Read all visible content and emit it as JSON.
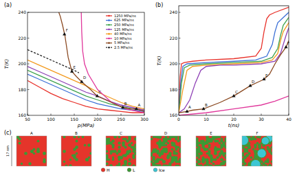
{
  "chart_data": [
    {
      "type": "line",
      "title": "(a)",
      "x_label": "p(MPa)",
      "y_label": "T(K)",
      "xlim": [
        50,
        300
      ],
      "ylim": [
        160,
        240
      ],
      "xticks": [
        50,
        100,
        150,
        200,
        250,
        300
      ],
      "yticks": [
        160,
        180,
        200,
        220,
        240
      ],
      "legend": "upper right",
      "series": [
        {
          "name": "1250 MPa/ns",
          "color": "#e8312a",
          "line_style": "solid",
          "x": [
            50,
            75,
            100,
            125,
            150,
            175,
            200,
            225,
            250,
            275,
            300
          ],
          "values": [
            187,
            182,
            177,
            173,
            170,
            167,
            165,
            164,
            163,
            162,
            162
          ]
        },
        {
          "name": "625 MPa/ns",
          "color": "#3b6fd6",
          "line_style": "solid",
          "x": [
            50,
            75,
            100,
            125,
            150,
            175,
            200,
            225,
            250,
            275,
            300
          ],
          "values": [
            192,
            188,
            184,
            180,
            176,
            172,
            169,
            167,
            165,
            164,
            163
          ]
        },
        {
          "name": "250 MPa/ns",
          "color": "#3fa34d",
          "line_style": "solid",
          "x": [
            50,
            75,
            100,
            125,
            150,
            175,
            200,
            225,
            250,
            275,
            300
          ],
          "values": [
            195,
            191,
            187,
            183,
            179,
            175,
            172,
            169,
            167,
            165,
            164
          ]
        },
        {
          "name": "125 MPa/ns",
          "color": "#8e3fb5",
          "line_style": "solid",
          "x": [
            50,
            75,
            100,
            125,
            150,
            175,
            200,
            225,
            250,
            275,
            300
          ],
          "values": [
            198,
            194,
            190,
            186,
            182,
            178,
            175,
            171,
            168,
            166,
            164
          ]
        },
        {
          "name": "40 MPa/ns",
          "color": "#f39a1e",
          "line_style": "solid",
          "x": [
            50,
            75,
            100,
            125,
            150,
            175,
            200,
            225,
            250,
            275,
            300
          ],
          "values": [
            203,
            199,
            195,
            191,
            187,
            183,
            178,
            174,
            170,
            167,
            165
          ]
        },
        {
          "name": "10 MPa/ns",
          "color": "#e0379b",
          "line_style": "solid",
          "x": [
            165,
            166,
            168,
            172,
            180,
            200,
            230,
            260,
            300
          ],
          "values": [
            240,
            225,
            210,
            200,
            192,
            180,
            170,
            165,
            162
          ]
        },
        {
          "name": "5 MPa/ns",
          "color": "#8b4a22",
          "line_style": "solid",
          "x": [
            300,
            283,
            270,
            254,
            230,
            199,
            185,
            166,
            155,
            145,
            137,
            130,
            125,
            120,
            117
          ],
          "values": [
            163,
            165,
            165,
            166,
            170,
            175,
            180,
            186,
            190,
            194,
            205,
            222,
            230,
            237,
            240
          ]
        },
        {
          "name": "2.5 MPa/ns",
          "color": "#222222",
          "line_style": "dashed",
          "x": [
            50,
            75,
            100,
            125,
            150,
            160
          ],
          "values": [
            211,
            207,
            203,
            199,
            195,
            193
          ]
        }
      ],
      "annotations": [
        {
          "label": "A",
          "x": 283,
          "y": 165,
          "marker": "triangle"
        },
        {
          "label": "B",
          "x": 254,
          "y": 166,
          "marker": "triangle"
        },
        {
          "label": "C",
          "x": 199,
          "y": 175,
          "marker": "triangle"
        },
        {
          "label": "D",
          "x": 166,
          "y": 186,
          "marker": "triangle"
        },
        {
          "label": "E",
          "x": 145,
          "y": 194,
          "marker": "triangle"
        },
        {
          "label": "F",
          "x": 129,
          "y": 223,
          "marker": "triangle"
        }
      ]
    },
    {
      "type": "line",
      "title": "(b)",
      "x_label": "t(ns)",
      "y_label": "T(K)",
      "xlim": [
        0,
        40
      ],
      "ylim": [
        160,
        245
      ],
      "xticks": [
        0,
        10,
        20,
        30,
        40
      ],
      "yticks": [
        160,
        180,
        200,
        220,
        240
      ],
      "series": [
        {
          "name": "1250 MPa/ns",
          "color": "#e8312a",
          "line_style": "solid",
          "x": [
            0,
            0.5,
            1,
            2,
            5,
            10,
            20,
            28,
            30,
            31,
            32,
            33,
            35,
            40
          ],
          "values": [
            162,
            190,
            200,
            201,
            202,
            203,
            204,
            206,
            212,
            225,
            235,
            238,
            240,
            244
          ]
        },
        {
          "name": "625 MPa/ns",
          "color": "#3b6fd6",
          "line_style": "solid",
          "x": [
            0,
            0.7,
            1.5,
            3,
            10,
            20,
            28,
            32,
            34,
            35,
            36,
            38,
            40
          ],
          "values": [
            162,
            185,
            198,
            200,
            201,
            202,
            203,
            206,
            215,
            225,
            232,
            236,
            240
          ]
        },
        {
          "name": "250 MPa/ns",
          "color": "#3fa34d",
          "line_style": "solid",
          "x": [
            0,
            1,
            2,
            4,
            10,
            20,
            30,
            34,
            36,
            37,
            38,
            40
          ],
          "values": [
            162,
            185,
            197,
            199,
            200,
            201,
            202,
            205,
            212,
            222,
            230,
            236
          ]
        },
        {
          "name": "40 MPa/ns",
          "color": "#f39a1e",
          "line_style": "solid",
          "x": [
            0,
            1.5,
            3,
            5,
            10,
            20,
            30,
            34,
            36,
            37,
            38,
            40
          ],
          "values": [
            162,
            180,
            195,
            198,
            199,
            200,
            201,
            203,
            208,
            218,
            225,
            232
          ]
        },
        {
          "name": "125 MPa/ns",
          "color": "#8e3fb5",
          "line_style": "solid",
          "x": [
            0,
            2,
            4,
            6,
            8,
            10,
            15,
            20,
            30,
            35,
            37,
            38,
            39,
            40
          ],
          "values": [
            162,
            165,
            172,
            185,
            195,
            198,
            199,
            199,
            200,
            202,
            208,
            215,
            222,
            228
          ]
        },
        {
          "name": "5 MPa/ns",
          "color": "#8b4a22",
          "line_style": "solid",
          "x": [
            0,
            3,
            5,
            9,
            15,
            20,
            23,
            26,
            29,
            31,
            33,
            35,
            37,
            39,
            40
          ],
          "values": [
            162,
            163,
            164,
            165,
            170,
            175,
            179,
            183,
            186,
            188,
            192,
            200,
            207,
            213,
            218
          ]
        },
        {
          "name": "10 MPa/ns",
          "color": "#e0379b",
          "line_style": "solid",
          "x": [
            0,
            10,
            20,
            30,
            35,
            40
          ],
          "values": [
            160,
            162,
            165,
            168,
            171,
            175
          ]
        }
      ],
      "annotations": [
        {
          "label": "A",
          "x": 3,
          "y": 163,
          "marker": "triangle"
        },
        {
          "label": "B",
          "x": 9,
          "y": 165,
          "marker": "triangle"
        },
        {
          "label": "C",
          "x": 20,
          "y": 175,
          "marker": "triangle"
        },
        {
          "label": "D",
          "x": 26,
          "y": 183,
          "marker": "triangle"
        },
        {
          "label": "E",
          "x": 31,
          "y": 188,
          "marker": "triangle"
        },
        {
          "label": "F",
          "x": 39,
          "y": 213,
          "marker": "triangle"
        }
      ]
    }
  ],
  "panel_c": {
    "title": "(c)",
    "labels": [
      "A",
      "B",
      "C",
      "D",
      "E",
      "F"
    ],
    "scale_label": "17 nm",
    "legend": [
      {
        "name": "H",
        "color": "#e5352b"
      },
      {
        "name": "L",
        "color": "#3c9a35"
      },
      {
        "name": "Ice",
        "color": "#3cc6d3"
      }
    ]
  }
}
